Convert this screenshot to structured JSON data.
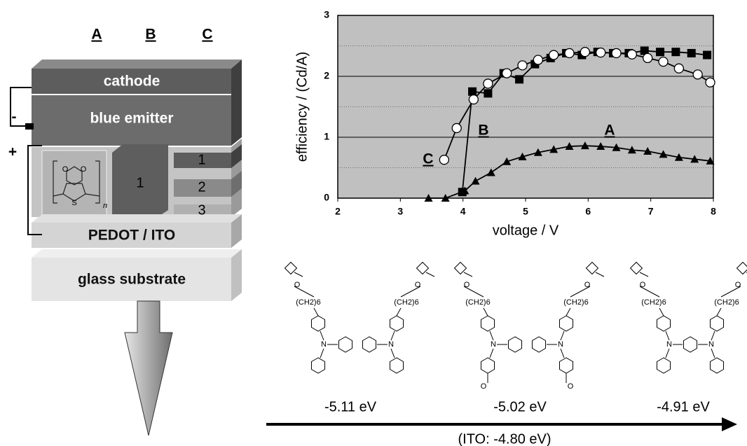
{
  "diagram": {
    "columns": [
      "A",
      "B",
      "C"
    ],
    "cathode": "cathode",
    "emitter": "blue emitter",
    "hole_layer_B": "1",
    "hole_layers_C": [
      "1",
      "2",
      "3"
    ],
    "pedot_ito": "PEDOT / ITO",
    "glass": "glass substrate",
    "polarity": [
      "-",
      "+"
    ],
    "pedot_atoms": [
      "O",
      "O",
      "S"
    ],
    "pedot_repeat": "n"
  },
  "chart_data": {
    "type": "line",
    "x_label": "voltage / V",
    "y_label": "efficiency / (Cd/A)",
    "xlim": [
      2,
      8
    ],
    "ylim": [
      0,
      3
    ],
    "xticks": [
      2,
      3,
      4,
      5,
      6,
      7,
      8
    ],
    "yticks": [
      0,
      1,
      2,
      3
    ],
    "y_minor_gridlines": [
      0.5,
      1.5,
      2.5
    ],
    "grid": true,
    "background": "#c0c0c0",
    "series": [
      {
        "name": "A",
        "color": "#000000",
        "marker": "triangle",
        "x": [
          3.45,
          3.72,
          4.03,
          4.2,
          4.45,
          4.7,
          4.95,
          5.2,
          5.45,
          5.7,
          5.95,
          6.2,
          6.45,
          6.7,
          6.95,
          7.2,
          7.45,
          7.7,
          7.95
        ],
        "values": [
          0,
          0,
          0.12,
          0.28,
          0.42,
          0.6,
          0.68,
          0.75,
          0.8,
          0.85,
          0.86,
          0.85,
          0.83,
          0.79,
          0.77,
          0.72,
          0.67,
          0.64,
          0.61
        ]
      },
      {
        "name": "B",
        "color": "#000000",
        "marker": "square",
        "x": [
          3.99,
          4.15,
          4.4,
          4.65,
          4.9,
          5.15,
          5.4,
          5.65,
          5.9,
          6.15,
          6.4,
          6.65,
          6.9,
          7.15,
          7.4,
          7.65,
          7.9
        ],
        "values": [
          0.1,
          1.75,
          1.72,
          2.05,
          1.95,
          2.2,
          2.3,
          2.38,
          2.35,
          2.4,
          2.38,
          2.38,
          2.42,
          2.4,
          2.4,
          2.38,
          2.35
        ]
      },
      {
        "name": "C",
        "color": "#000000",
        "marker": "circle",
        "x": [
          3.7,
          3.9,
          4.17,
          4.4,
          4.7,
          4.95,
          5.2,
          5.45,
          5.7,
          5.95,
          6.2,
          6.45,
          6.7,
          6.95,
          7.2,
          7.45,
          7.75,
          7.95
        ],
        "values": [
          0.63,
          1.15,
          1.62,
          1.88,
          2.05,
          2.18,
          2.27,
          2.35,
          2.38,
          2.4,
          2.39,
          2.38,
          2.36,
          2.3,
          2.24,
          2.13,
          2.03,
          1.9
        ]
      }
    ]
  },
  "molecules": [
    {
      "chains": [
        "(CH2)6",
        "(CH2)6"
      ],
      "atoms": [
        "N",
        "N",
        "O",
        "O"
      ],
      "homo": "-5.11 eV"
    },
    {
      "chains": [
        "(CH2)6",
        "(CH2)6"
      ],
      "atoms": [
        "N",
        "N",
        "O",
        "O",
        "O",
        "O"
      ],
      "homo": "-5.02 eV"
    },
    {
      "chains": [
        "(CH2)6",
        "(CH2)6"
      ],
      "atoms": [
        "N",
        "N",
        "O",
        "O"
      ],
      "homo": "-4.91 eV"
    }
  ],
  "ito_label": "(ITO: -4.80 eV)"
}
